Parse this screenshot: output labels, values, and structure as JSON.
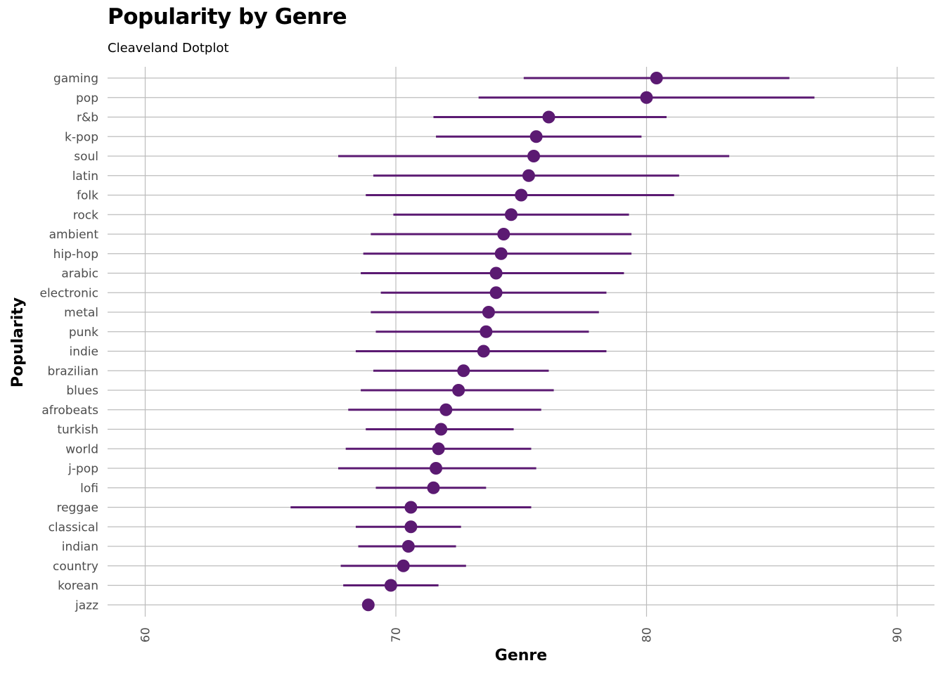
{
  "chart_data": {
    "type": "scatter",
    "title": "Popularity by Genre",
    "subtitle": "Cleaveland Dotplot",
    "xlabel": "Genre",
    "ylabel": "Popularity",
    "xlim": [
      58.5,
      91.5
    ],
    "x_ticks": [
      "60",
      "70",
      "80",
      "90"
    ],
    "grid": true,
    "colors": {
      "point": "#5b1a72",
      "line": "#5b1a72",
      "grid": "#bdbdbd"
    },
    "genres": [
      "gaming",
      "pop",
      "r&b",
      "k-pop",
      "soul",
      "latin",
      "folk",
      "rock",
      "ambient",
      "hip-hop",
      "arabic",
      "electronic",
      "metal",
      "punk",
      "indie",
      "brazilian",
      "blues",
      "afrobeats",
      "turkish",
      "world",
      "j-pop",
      "lofi",
      "reggae",
      "classical",
      "indian",
      "country",
      "korean",
      "jazz"
    ],
    "mean": [
      80.4,
      80.0,
      76.1,
      75.6,
      75.5,
      75.3,
      75.0,
      74.6,
      74.3,
      74.2,
      74.0,
      74.0,
      73.7,
      73.6,
      73.5,
      72.7,
      72.5,
      72.0,
      71.8,
      71.7,
      71.6,
      71.5,
      70.6,
      70.6,
      70.5,
      70.3,
      69.8,
      68.9
    ],
    "low": [
      75.1,
      73.3,
      71.5,
      71.6,
      67.7,
      69.1,
      68.8,
      69.9,
      69.0,
      68.7,
      68.6,
      69.4,
      69.0,
      69.2,
      68.4,
      69.1,
      68.6,
      68.1,
      68.8,
      68.0,
      67.7,
      69.2,
      65.8,
      68.4,
      68.5,
      67.8,
      67.9,
      68.9
    ],
    "high": [
      85.7,
      86.7,
      80.8,
      79.8,
      83.3,
      81.3,
      81.1,
      79.3,
      79.4,
      79.4,
      79.1,
      78.4,
      78.1,
      77.7,
      78.4,
      76.1,
      76.3,
      75.8,
      74.7,
      75.4,
      75.6,
      73.6,
      75.4,
      72.6,
      72.4,
      72.8,
      71.7,
      68.9
    ]
  }
}
